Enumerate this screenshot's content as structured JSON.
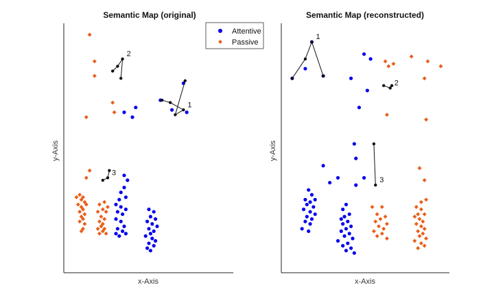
{
  "chart_data": [
    {
      "type": "scatter",
      "title": "Semantic Map (original)",
      "xlabel": "x-Axis",
      "ylabel": "y-Axis",
      "xlim": [
        0,
        100
      ],
      "ylim": [
        0,
        100
      ],
      "legend": {
        "placement": "top-right",
        "entries": [
          "Attentive",
          "Passive"
        ]
      },
      "series": [
        {
          "name": "Attentive",
          "color": "#0000ee",
          "marker": "circle",
          "points": [
            [
              71,
              77
            ],
            [
              73,
              65
            ],
            [
              64,
              66
            ],
            [
              57,
              70
            ],
            [
              42,
              67
            ],
            [
              40,
              63
            ],
            [
              35,
              65
            ],
            [
              35,
              39
            ],
            [
              37,
              37
            ],
            [
              35,
              34
            ],
            [
              33,
              32
            ],
            [
              36,
              30
            ],
            [
              32,
              29
            ],
            [
              30,
              27
            ],
            [
              33,
              26
            ],
            [
              36,
              25
            ],
            [
              31,
              24
            ],
            [
              34,
              23
            ],
            [
              30,
              21
            ],
            [
              33,
              20
            ],
            [
              35,
              18
            ],
            [
              31,
              17
            ],
            [
              34,
              16
            ],
            [
              30,
              15
            ],
            [
              36,
              15
            ],
            [
              32,
              14
            ],
            [
              50,
              25
            ],
            [
              53,
              24
            ],
            [
              51,
              22
            ],
            [
              54,
              21
            ],
            [
              49,
              20
            ],
            [
              52,
              19
            ],
            [
              55,
              18
            ],
            [
              50,
              17
            ],
            [
              53,
              16
            ],
            [
              51,
              15
            ],
            [
              48,
              14
            ],
            [
              52,
              13
            ],
            [
              54,
              12
            ],
            [
              50,
              11
            ],
            [
              53,
              10
            ],
            [
              51,
              8
            ],
            [
              49,
              9
            ]
          ]
        },
        {
          "name": "Passive",
          "color": "#e8601c",
          "marker": "diamond",
          "points": [
            [
              14,
              97
            ],
            [
              17,
              86
            ],
            [
              17,
              80
            ],
            [
              12,
              63
            ],
            [
              28,
              69
            ],
            [
              29,
              65
            ],
            [
              14,
              41
            ],
            [
              12,
              38
            ],
            [
              8,
              31
            ],
            [
              10,
              30
            ],
            [
              6,
              30
            ],
            [
              9,
              29
            ],
            [
              11,
              28
            ],
            [
              7,
              27
            ],
            [
              12,
              27
            ],
            [
              9,
              26
            ],
            [
              10,
              25
            ],
            [
              8,
              24
            ],
            [
              11,
              23
            ],
            [
              9,
              22
            ],
            [
              10,
              21
            ],
            [
              8,
              20
            ],
            [
              11,
              19
            ],
            [
              10,
              17
            ],
            [
              9,
              16
            ],
            [
              23,
              28
            ],
            [
              20,
              27
            ],
            [
              22,
              25
            ],
            [
              24,
              24
            ],
            [
              19,
              24
            ],
            [
              21,
              22
            ],
            [
              23,
              21
            ],
            [
              20,
              20
            ],
            [
              22,
              19
            ],
            [
              21,
              18
            ],
            [
              23,
              17
            ],
            [
              19,
              17
            ],
            [
              22,
              16
            ],
            [
              24,
              15
            ],
            [
              20,
              15
            ],
            [
              25,
              26
            ]
          ]
        }
      ],
      "annotations": [
        {
          "label": "1",
          "points": [
            [
              58,
              70
            ],
            [
              63,
              69
            ],
            [
              71,
              66
            ],
            [
              66,
              64
            ],
            [
              72,
              78
            ]
          ]
        },
        {
          "label": "2",
          "points": [
            [
              28,
              82
            ],
            [
              31,
              84
            ],
            [
              34,
              87
            ],
            [
              33,
              79
            ]
          ]
        },
        {
          "label": "3",
          "points": [
            [
              22,
              37
            ],
            [
              25,
              38
            ],
            [
              26,
              41
            ]
          ]
        }
      ]
    },
    {
      "type": "scatter",
      "title": "Semantic Map (reconstructed)",
      "xlabel": "x-Axis",
      "ylabel": "y-Axis",
      "xlim": [
        0,
        100
      ],
      "ylim": [
        0,
        100
      ],
      "series": [
        {
          "name": "Attentive",
          "color": "#0000ee",
          "points": [
            [
              17,
              94
            ],
            [
              13,
              83
            ],
            [
              5,
              79
            ],
            [
              24,
              80
            ],
            [
              49,
              89
            ],
            [
              53,
              87
            ],
            [
              41,
              79
            ],
            [
              51,
              74
            ],
            [
              46,
              67
            ],
            [
              43,
              52
            ],
            [
              44,
              46
            ],
            [
              24,
              43
            ],
            [
              33,
              38
            ],
            [
              28,
              36
            ],
            [
              44,
              35
            ],
            [
              49,
              38
            ],
            [
              15,
              33
            ],
            [
              17,
              31
            ],
            [
              13,
              29
            ],
            [
              19,
              29
            ],
            [
              16,
              28
            ],
            [
              14,
              27
            ],
            [
              18,
              26
            ],
            [
              12,
              25
            ],
            [
              16,
              24
            ],
            [
              19,
              23
            ],
            [
              14,
              22
            ],
            [
              17,
              21
            ],
            [
              13,
              20
            ],
            [
              16,
              19
            ],
            [
              11,
              17
            ],
            [
              15,
              16
            ],
            [
              38,
              27
            ],
            [
              36,
              25
            ],
            [
              40,
              23
            ],
            [
              37,
              22
            ],
            [
              35,
              21
            ],
            [
              39,
              20
            ],
            [
              36,
              19
            ],
            [
              41,
              18
            ],
            [
              38,
              17
            ],
            [
              35,
              16
            ],
            [
              40,
              15
            ],
            [
              37,
              14
            ],
            [
              42,
              13
            ],
            [
              33,
              12
            ],
            [
              39,
              11
            ],
            [
              36,
              10
            ],
            [
              41,
              9
            ],
            [
              38,
              8
            ],
            [
              43,
              7
            ]
          ]
        },
        {
          "name": "Passive",
          "color": "#e8601c",
          "points": [
            [
              62,
              86
            ],
            [
              64,
              84
            ],
            [
              67,
              85
            ],
            [
              78,
              88
            ],
            [
              88,
              86
            ],
            [
              96,
              84
            ],
            [
              86,
              79
            ],
            [
              63,
              64
            ],
            [
              87,
              62
            ],
            [
              83,
              42
            ],
            [
              86,
              37
            ],
            [
              87,
              29
            ],
            [
              84,
              28
            ],
            [
              54,
              26
            ],
            [
              60,
              26
            ],
            [
              57,
              23
            ],
            [
              62,
              22
            ],
            [
              59,
              21
            ],
            [
              56,
              20
            ],
            [
              63,
              19
            ],
            [
              58,
              18
            ],
            [
              61,
              17
            ],
            [
              55,
              16
            ],
            [
              60,
              15
            ],
            [
              57,
              14
            ],
            [
              63,
              13
            ],
            [
              81,
              26
            ],
            [
              84,
              25
            ],
            [
              82,
              23
            ],
            [
              86,
              23
            ],
            [
              80,
              22
            ],
            [
              83,
              21
            ],
            [
              85,
              20
            ],
            [
              81,
              19
            ],
            [
              84,
              18
            ],
            [
              86,
              17
            ],
            [
              82,
              16
            ],
            [
              85,
              15
            ],
            [
              83,
              14
            ],
            [
              87,
              13
            ],
            [
              80,
              12
            ],
            [
              84,
              11
            ],
            [
              86,
              10
            ],
            [
              82,
              9
            ]
          ]
        }
      ],
      "annotations": [
        {
          "label": "1",
          "points": [
            [
              5,
              79
            ],
            [
              13,
              87
            ],
            [
              17,
              94
            ],
            [
              24,
              80
            ]
          ]
        },
        {
          "label": "2",
          "points": [
            [
              61,
              76
            ],
            [
              65,
              75
            ],
            [
              66,
              76
            ]
          ]
        },
        {
          "label": "3",
          "points": [
            [
              55,
              52
            ],
            [
              56,
              35
            ]
          ]
        }
      ]
    }
  ]
}
